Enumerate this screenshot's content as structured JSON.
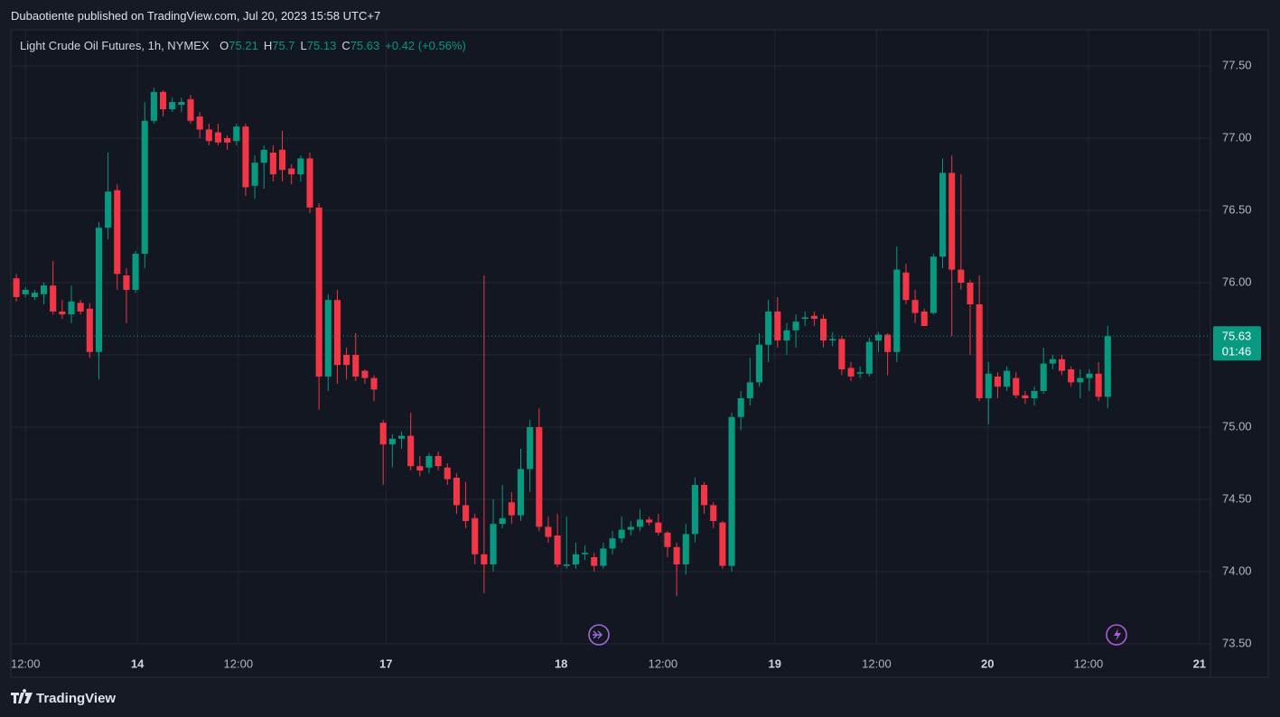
{
  "published": "Dubaotiente published on TradingView.com, Jul 20, 2023 15:58 UTC+7",
  "brand": "TradingView",
  "chart_data": {
    "type": "candlestick",
    "title": "Light Crude Oil Futures, 1h, NYMEX",
    "ohlc_labels": [
      "O",
      "H",
      "L",
      "C"
    ],
    "change": "+0.42 (+0.56%)",
    "countdown": "01:46",
    "up_color": "#089981",
    "down_color": "#f23645",
    "grid": true,
    "open": [
      76.03,
      75.92,
      75.9,
      75.92,
      75.98,
      75.8,
      75.78,
      75.86,
      75.82,
      75.52,
      76.38,
      76.64,
      76.05,
      75.95,
      76.2,
      77.12,
      77.32,
      77.2,
      77.23,
      77.27,
      77.15,
      77.06,
      77.04,
      77.0,
      76.98,
      77.08,
      76.67,
      76.83,
      76.9,
      76.92,
      76.79,
      76.75,
      76.86,
      76.52,
      75.35,
      75.88,
      75.5,
      75.5,
      75.39,
      75.34,
      75.03,
      74.88,
      74.92,
      74.94,
      74.73,
      74.72,
      74.8,
      74.72,
      74.65,
      74.46,
      74.37,
      74.12,
      74.05,
      74.33,
      74.48,
      74.39,
      74.71,
      75.0,
      74.31,
      74.25,
      74.04,
      74.05,
      74.12,
      74.1,
      74.04,
      74.16,
      74.23,
      74.29,
      74.31,
      74.36,
      74.34,
      74.27,
      74.17,
      74.05,
      74.26,
      74.6,
      74.46,
      74.34,
      74.04,
      75.07,
      75.2,
      75.31,
      75.57,
      75.8,
      75.6,
      75.67,
      75.75,
      75.77,
      75.75,
      75.6,
      75.61,
      75.41,
      75.37,
      75.37,
      75.6,
      75.64,
      75.52,
      76.07,
      75.88,
      75.8,
      75.79,
      76.18,
      76.76,
      76.09,
      76.0,
      75.85,
      75.2,
      75.35,
      75.28,
      75.34,
      75.22,
      75.2,
      75.25,
      75.44,
      75.47,
      75.4,
      75.31,
      75.34,
      75.37,
      75.21
    ],
    "high": [
      76.06,
      75.97,
      75.95,
      76.0,
      76.15,
      75.88,
      75.98,
      75.88,
      75.86,
      76.42,
      76.9,
      76.68,
      76.1,
      76.22,
      77.25,
      77.35,
      77.33,
      77.28,
      77.28,
      77.3,
      77.18,
      77.1,
      77.1,
      77.02,
      77.1,
      77.1,
      76.88,
      76.95,
      76.95,
      77.05,
      76.82,
      76.88,
      76.9,
      76.55,
      75.92,
      75.95,
      75.55,
      75.65,
      75.4,
      75.36,
      75.05,
      74.95,
      74.97,
      75.1,
      74.8,
      74.82,
      74.83,
      74.75,
      74.68,
      74.62,
      74.4,
      76.05,
      74.5,
      74.6,
      74.55,
      74.85,
      75.05,
      75.13,
      74.38,
      74.4,
      74.38,
      74.2,
      74.18,
      74.13,
      74.2,
      74.28,
      74.38,
      74.35,
      74.43,
      74.38,
      74.4,
      74.28,
      74.2,
      74.33,
      74.65,
      74.62,
      74.48,
      74.35,
      75.1,
      75.25,
      75.48,
      75.65,
      75.88,
      75.9,
      75.72,
      75.78,
      75.8,
      75.8,
      75.78,
      75.66,
      75.63,
      75.45,
      75.42,
      75.62,
      75.66,
      75.65,
      76.25,
      76.13,
      75.95,
      75.82,
      76.2,
      76.86,
      76.88,
      76.75,
      76.02,
      76.05,
      75.45,
      75.38,
      75.42,
      75.38,
      75.25,
      75.28,
      75.55,
      75.5,
      75.5,
      75.42,
      75.4,
      75.4,
      75.45,
      75.7
    ],
    "low": [
      75.87,
      75.9,
      75.88,
      75.85,
      75.78,
      75.75,
      75.72,
      75.78,
      75.48,
      75.33,
      76.3,
      75.95,
      75.72,
      75.93,
      76.1,
      77.1,
      77.15,
      77.18,
      77.18,
      77.1,
      77.0,
      76.95,
      76.95,
      76.92,
      76.95,
      76.6,
      76.58,
      76.65,
      76.7,
      76.7,
      76.68,
      76.7,
      76.48,
      75.12,
      75.25,
      75.3,
      75.33,
      75.32,
      75.3,
      75.18,
      74.6,
      74.72,
      74.85,
      74.7,
      74.66,
      74.68,
      74.7,
      74.6,
      74.4,
      74.3,
      74.05,
      73.85,
      74.0,
      74.3,
      74.33,
      74.35,
      74.55,
      74.28,
      74.2,
      74.03,
      74.02,
      74.02,
      74.08,
      74.0,
      74.02,
      74.12,
      74.2,
      74.25,
      74.28,
      74.32,
      74.25,
      74.1,
      73.83,
      73.98,
      74.2,
      74.4,
      74.3,
      74.02,
      74.0,
      74.98,
      75.15,
      75.28,
      75.45,
      75.55,
      75.5,
      75.55,
      75.7,
      75.7,
      75.55,
      75.56,
      75.36,
      75.32,
      75.34,
      75.35,
      75.52,
      75.36,
      75.45,
      75.85,
      75.72,
      75.7,
      75.78,
      76.1,
      75.63,
      75.95,
      75.5,
      75.18,
      75.02,
      75.2,
      75.25,
      75.2,
      75.16,
      75.15,
      75.23,
      75.4,
      75.36,
      75.28,
      75.2,
      75.25,
      75.18,
      75.13
    ],
    "close": [
      75.9,
      75.95,
      75.93,
      75.98,
      75.8,
      75.78,
      75.87,
      75.8,
      75.52,
      76.38,
      76.63,
      76.06,
      75.95,
      76.2,
      77.12,
      77.32,
      77.2,
      77.25,
      77.25,
      77.12,
      77.06,
      76.98,
      76.97,
      76.97,
      77.08,
      76.66,
      76.83,
      76.92,
      76.75,
      76.78,
      76.75,
      76.86,
      76.52,
      75.35,
      75.88,
      75.43,
      75.43,
      75.35,
      75.34,
      75.26,
      74.88,
      74.92,
      74.94,
      74.73,
      74.7,
      74.8,
      74.73,
      74.64,
      74.46,
      74.35,
      74.12,
      74.05,
      74.33,
      74.37,
      74.39,
      74.71,
      75.0,
      74.31,
      74.24,
      74.05,
      74.05,
      74.12,
      74.13,
      74.04,
      74.16,
      74.23,
      74.29,
      74.31,
      74.36,
      74.34,
      74.27,
      74.17,
      74.05,
      74.26,
      74.6,
      74.46,
      74.35,
      74.04,
      75.07,
      75.2,
      75.31,
      75.57,
      75.8,
      75.6,
      75.67,
      75.73,
      75.76,
      75.75,
      75.6,
      75.61,
      75.4,
      75.35,
      75.38,
      75.59,
      75.64,
      75.52,
      76.09,
      75.88,
      75.79,
      75.7,
      76.18,
      76.76,
      76.09,
      76.0,
      75.85,
      75.2,
      75.37,
      75.28,
      75.39,
      75.22,
      75.2,
      75.25,
      75.44,
      75.47,
      75.39,
      75.31,
      75.34,
      75.37,
      75.21,
      75.63
    ],
    "ylim": [
      73.5,
      77.75
    ],
    "yticks": [
      {
        "value": 73.5,
        "label": "73.50"
      },
      {
        "value": 74,
        "label": "74.00"
      },
      {
        "value": 74.5,
        "label": "74.50"
      },
      {
        "value": 75,
        "label": "75.00"
      },
      {
        "value": 75.5,
        "label": "75.50"
      },
      {
        "value": 76,
        "label": "76.00"
      },
      {
        "value": 76.5,
        "label": "76.50"
      },
      {
        "value": 77,
        "label": "77.00"
      },
      {
        "value": 77.5,
        "label": "77.50"
      }
    ],
    "xlim": [
      -0.6,
      130.2
    ],
    "xticks": [
      {
        "value": 1.0,
        "label": "12:00"
      },
      {
        "value": 13.2,
        "label": "14"
      },
      {
        "value": 24.2,
        "label": "12:00"
      },
      {
        "value": 40.3,
        "label": "17"
      },
      {
        "value": 59.4,
        "label": "18"
      },
      {
        "value": 70.5,
        "label": "12:00"
      },
      {
        "value": 82.7,
        "label": "19"
      },
      {
        "value": 93.8,
        "label": "12:00"
      },
      {
        "value": 105.9,
        "label": "20"
      },
      {
        "value": 116.9,
        "label": "12:00"
      },
      {
        "value": 129.0,
        "label": "21"
      }
    ]
  }
}
